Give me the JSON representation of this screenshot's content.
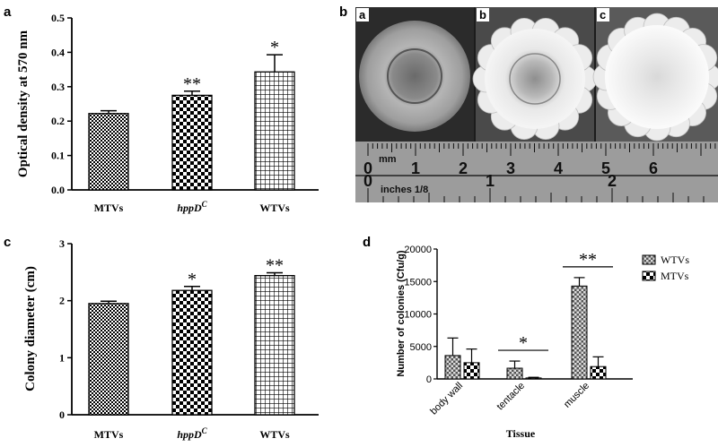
{
  "panels": {
    "a": {
      "letter": "a"
    },
    "b": {
      "letter": "b",
      "photo_letters": [
        "a",
        "b",
        "c"
      ],
      "ruler": {
        "top_unit": "mm",
        "top_numbers": [
          "0",
          "1",
          "2",
          "3",
          "4",
          "5",
          "6"
        ],
        "bottom_unit": "inches 1/8",
        "bottom_numbers": [
          "0",
          "1",
          "2"
        ]
      }
    },
    "c": {
      "letter": "c"
    },
    "d": {
      "letter": "d"
    }
  },
  "colors": {
    "bar_fill": "#ffffff",
    "bar_stroke": "#000000",
    "pattern": "#000000"
  },
  "chart_data": [
    {
      "id": "a",
      "type": "bar",
      "ylabel": "Optical density at 570 nm",
      "xlabel": "",
      "categories": [
        "MTVs",
        "hppD",
        "WTVs"
      ],
      "category_superscripts": [
        "",
        "C",
        ""
      ],
      "values": [
        0.222,
        0.275,
        0.343
      ],
      "errors": [
        0.008,
        0.012,
        0.05
      ],
      "significance": [
        "",
        "**",
        "*"
      ],
      "patterns": [
        "check-fine",
        "check-coarse",
        "grid"
      ],
      "ylim": [
        0,
        0.5
      ],
      "yticks": [
        "0.0",
        "0.1",
        "0.2",
        "0.3",
        "0.4",
        "0.5"
      ],
      "ytick_values": [
        0,
        0.1,
        0.2,
        0.3,
        0.4,
        0.5
      ],
      "grid": false
    },
    {
      "id": "c",
      "type": "bar",
      "ylabel": "Colony diameter (cm)",
      "xlabel": "",
      "categories": [
        "MTVs",
        "hppD",
        "WTVs"
      ],
      "category_superscripts": [
        "",
        "C",
        ""
      ],
      "values": [
        1.95,
        2.18,
        2.44
      ],
      "errors": [
        0.04,
        0.07,
        0.05
      ],
      "significance": [
        "",
        "*",
        "**"
      ],
      "patterns": [
        "check-fine",
        "check-coarse",
        "grid"
      ],
      "ylim": [
        0,
        3
      ],
      "yticks": [
        "0",
        "1",
        "2",
        "3"
      ],
      "ytick_values": [
        0,
        1,
        2,
        3
      ],
      "grid": false
    },
    {
      "id": "d",
      "type": "bar",
      "ylabel": "Number of colonies (Cfu/g)",
      "xlabel": "Tissue",
      "categories": [
        "body wall",
        "tentacle",
        "muscle"
      ],
      "series": [
        {
          "name": "WTVs",
          "values": [
            3600,
            1650,
            14300
          ],
          "errors": [
            2700,
            1100,
            1300
          ],
          "pattern": "check-dark"
        },
        {
          "name": "MTVs",
          "values": [
            2500,
            150,
            1900
          ],
          "errors": [
            2100,
            100,
            1500
          ],
          "pattern": "check-coarse"
        }
      ],
      "significance": [
        "",
        "*",
        "**"
      ],
      "ylim": [
        0,
        20000
      ],
      "yticks": [
        "0",
        "5000",
        "10000",
        "15000",
        "20000"
      ],
      "ytick_values": [
        0,
        5000,
        10000,
        15000,
        20000
      ],
      "legend": "top-right",
      "grid": false
    }
  ]
}
